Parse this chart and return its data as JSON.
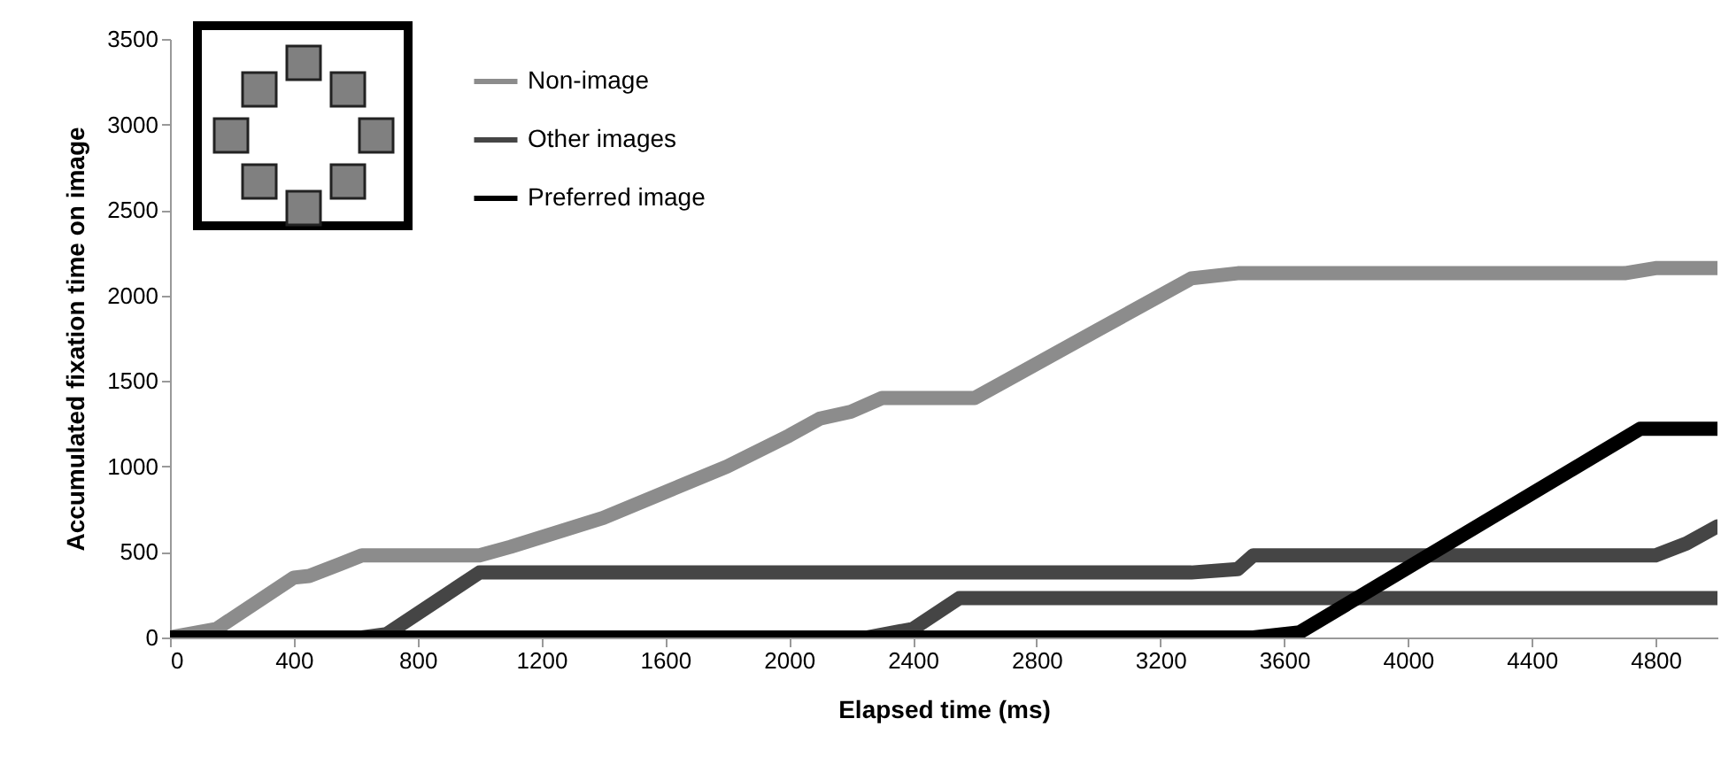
{
  "chart_data": {
    "type": "line",
    "xlabel": "Elapsed time (ms)",
    "ylabel": "Accumulated fixation time on image",
    "xlim": [
      0,
      5000
    ],
    "xticks": [
      0,
      400,
      800,
      1200,
      1600,
      2000,
      2400,
      2800,
      3200,
      3600,
      4000,
      4400,
      4800
    ],
    "ylim": [
      0,
      3500
    ],
    "yticks": [
      0,
      500,
      1000,
      1500,
      2000,
      2500,
      3000,
      3500
    ],
    "grid": false,
    "legend": "top left",
    "line_style": "solid",
    "series": [
      {
        "name": "Non-image",
        "color": "#8c8c8c",
        "x": [
          0,
          150,
          400,
          450,
          550,
          620,
          1000,
          1100,
          1400,
          1600,
          1800,
          2000,
          2100,
          2200,
          2300,
          2600,
          2700,
          3000,
          3200,
          3300,
          3450,
          4700,
          4800,
          5000
        ],
        "values": [
          0,
          50,
          350,
          360,
          430,
          480,
          480,
          530,
          700,
          850,
          1000,
          1180,
          1280,
          1320,
          1400,
          1400,
          1500,
          1800,
          2000,
          2100,
          2130,
          2130,
          2160,
          2160
        ]
      },
      {
        "name": "Other images",
        "color": "#454545",
        "x": [
          0,
          620,
          700,
          1000,
          3300,
          3450,
          3500,
          4800,
          4900,
          5000
        ],
        "values": [
          0,
          0,
          20,
          380,
          380,
          400,
          480,
          480,
          550,
          650
        ]
      },
      {
        "color": "#454545",
        "x": [
          0,
          2250,
          2400,
          2550,
          5000
        ],
        "values": [
          0,
          0,
          50,
          230,
          230
        ]
      },
      {
        "name": "Preferred image",
        "color": "#000000",
        "x": [
          0,
          3500,
          3650,
          4750,
          5000
        ],
        "values": [
          0,
          0,
          30,
          1220,
          1220
        ]
      }
    ]
  }
}
